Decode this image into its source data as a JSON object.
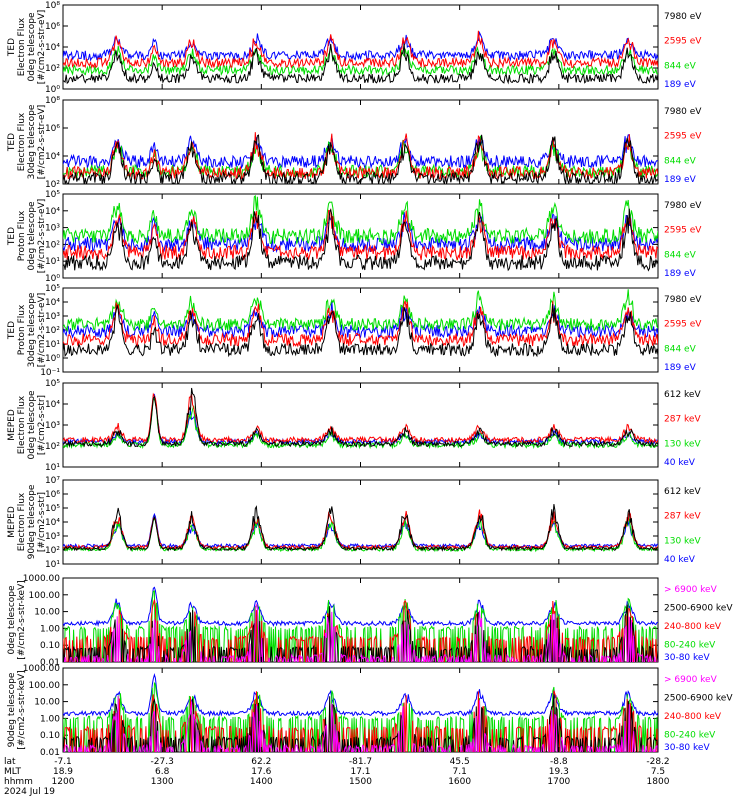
{
  "chart_data": {
    "type": "line",
    "time": {
      "ticks": [
        {
          "lat": "-7.1",
          "mlt": "18.9",
          "hhmm": "1200"
        },
        {
          "lat": "-27.3",
          "mlt": "6.8",
          "hhmm": "1300"
        },
        {
          "lat": "62.2",
          "mlt": "17.6",
          "hhmm": "1400"
        },
        {
          "lat": "-81.7",
          "mlt": "17.1",
          "hhmm": "1500"
        },
        {
          "lat": "45.5",
          "mlt": "7.1",
          "hhmm": "1600"
        },
        {
          "lat": "-8.8",
          "mlt": "19.3",
          "hhmm": "1700"
        },
        {
          "lat": "-28.2",
          "mlt": "7.5",
          "hhmm": "1800"
        }
      ],
      "row_labels": [
        "lat",
        "MLT",
        "hhmm"
      ],
      "date": "2024 Jul 19",
      "start": "12:00",
      "end": "18:00",
      "pass_hours": [
        12.55,
        13.3,
        13.95,
        14.7,
        15.45,
        16.2,
        16.95,
        17.7
      ]
    },
    "panels": [
      {
        "id": "ted-e-0",
        "ylabel": [
          "TED",
          "Electron Flux",
          "0deg telescope",
          "[#/cm2-s-str-eV]"
        ],
        "scale": "log",
        "ylim_exp": [
          0,
          8
        ],
        "tick_labels": [
          "10⁰",
          "10²",
          "10⁴",
          "10⁶",
          "10⁸"
        ],
        "series": [
          {
            "name": "7980 eV",
            "color": "#000000",
            "level": 1.0
          },
          {
            "name": "2595 eV",
            "color": "#ff0000",
            "level": 2.5
          },
          {
            "name": "844 eV",
            "color": "#00dd00",
            "level": 1.8
          },
          {
            "name": "189 eV",
            "color": "#0000ff",
            "level": 3.2
          }
        ]
      },
      {
        "id": "ted-e-30",
        "ylabel": [
          "TED",
          "Electron Flux",
          "30deg telescope",
          "[#/cm2-s-str-eV]"
        ],
        "scale": "log",
        "ylim_exp": [
          2,
          8
        ],
        "tick_labels": [
          "10²",
          "10⁴",
          "10⁶",
          "10⁸"
        ],
        "series": [
          {
            "name": "7980 eV",
            "color": "#000000",
            "level": 2.4
          },
          {
            "name": "2595 eV",
            "color": "#ff0000",
            "level": 2.8
          },
          {
            "name": "844 eV",
            "color": "#00dd00",
            "level": 2.9
          },
          {
            "name": "189 eV",
            "color": "#0000ff",
            "level": 3.6
          }
        ]
      },
      {
        "id": "ted-p-0",
        "ylabel": [
          "TED",
          "Proton Flux",
          "0deg telescope",
          "[#/cm2-s-str-eV]"
        ],
        "scale": "log",
        "ylim_exp": [
          0,
          5
        ],
        "tick_labels": [
          "10⁰",
          "10¹",
          "10²",
          "10³",
          "10⁴",
          "10⁵"
        ],
        "series": [
          {
            "name": "7980 eV",
            "color": "#000000",
            "level": 0.9
          },
          {
            "name": "2595 eV",
            "color": "#ff0000",
            "level": 1.5
          },
          {
            "name": "844 eV",
            "color": "#00dd00",
            "level": 2.5
          },
          {
            "name": "189 eV",
            "color": "#0000ff",
            "level": 2.0
          }
        ]
      },
      {
        "id": "ted-p-30",
        "ylabel": [
          "TED",
          "Proton Flux",
          "30deg telescope",
          "[#/cm2-s-str-eV]"
        ],
        "scale": "log",
        "ylim_exp": [
          -1,
          5
        ],
        "tick_labels": [
          "10⁻¹",
          "10⁰",
          "10¹",
          "10²",
          "10³",
          "10⁴",
          "10⁵"
        ],
        "series": [
          {
            "name": "7980 eV",
            "color": "#000000",
            "level": 0.6
          },
          {
            "name": "2595 eV",
            "color": "#ff0000",
            "level": 1.3
          },
          {
            "name": "844 eV",
            "color": "#00dd00",
            "level": 2.4
          },
          {
            "name": "189 eV",
            "color": "#0000ff",
            "level": 1.9
          }
        ]
      },
      {
        "id": "meped-e-0",
        "ylabel": [
          "MEPED",
          "Electron Flux",
          "0deg telescope",
          "[#/cm2-s-str]"
        ],
        "scale": "log",
        "ylim_exp": [
          1,
          5
        ],
        "tick_labels": [
          "10¹",
          "10²",
          "10³",
          "10⁴",
          "10⁵"
        ],
        "series": [
          {
            "name": "612 keV",
            "color": "#000000",
            "level": 2.1
          },
          {
            "name": "287 keV",
            "color": "#ff0000",
            "level": 2.3
          },
          {
            "name": "130 keV",
            "color": "#00dd00",
            "level": 2.05
          },
          {
            "name": "40 keV",
            "color": "#0000ff",
            "level": 2.2
          }
        ]
      },
      {
        "id": "meped-e-90",
        "ylabel": [
          "MEPED",
          "Electron Flux",
          "90deg telescope",
          "[#/cm2-s-str]"
        ],
        "scale": "log",
        "ylim_exp": [
          1,
          7
        ],
        "tick_labels": [
          "10¹",
          "10²",
          "10³",
          "10⁴",
          "10⁵",
          "10⁶",
          "10⁷"
        ],
        "series": [
          {
            "name": "612 keV",
            "color": "#000000",
            "level": 2.1
          },
          {
            "name": "287 keV",
            "color": "#ff0000",
            "level": 2.2
          },
          {
            "name": "130 keV",
            "color": "#00dd00",
            "level": 2.05
          },
          {
            "name": "40 keV",
            "color": "#0000ff",
            "level": 2.3
          }
        ]
      },
      {
        "id": "meped-p-0",
        "ylabel": [
          "0deg telescope",
          "[#/cm2-s-str-keV]"
        ],
        "scale": "log",
        "ylim_exp": [
          -2,
          3
        ],
        "tick_labels": [
          "0.01",
          "0.10",
          "1.00",
          "10.00",
          "100.00",
          "1000.00"
        ],
        "series": [
          {
            "name": "> 6900 keV",
            "color": "#ff00ff",
            "level": -1.7
          },
          {
            "name": "2500-6900 keV",
            "color": "#000000",
            "level": -1.2
          },
          {
            "name": "240-800 keV",
            "color": "#ff0000",
            "level": -0.6
          },
          {
            "name": "80-240 keV",
            "color": "#00dd00",
            "level": 0.0
          },
          {
            "name": "30-80 keV",
            "color": "#0000ff",
            "level": 0.3
          }
        ]
      },
      {
        "id": "meped-p-90",
        "ylabel": [
          "90deg telescope",
          "[#/cm2-s-str-keV]"
        ],
        "scale": "log",
        "ylim_exp": [
          -2,
          3
        ],
        "tick_labels": [
          "0.01",
          "0.10",
          "1.00",
          "10.00",
          "100.00",
          "1000.00"
        ],
        "series": [
          {
            "name": "> 6900 keV",
            "color": "#ff00ff",
            "level": -1.7
          },
          {
            "name": "2500-6900 keV",
            "color": "#000000",
            "level": -1.2
          },
          {
            "name": "240-800 keV",
            "color": "#ff0000",
            "level": -0.6
          },
          {
            "name": "80-240 keV",
            "color": "#00dd00",
            "level": 0.0
          },
          {
            "name": "30-80 keV",
            "color": "#0000ff",
            "level": 0.3
          }
        ]
      }
    ]
  }
}
